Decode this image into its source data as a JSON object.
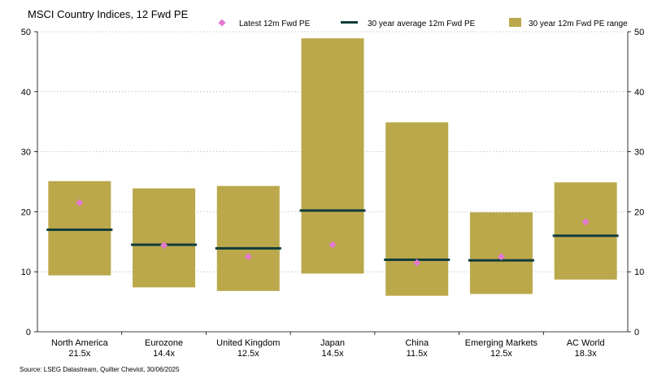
{
  "chart_data": {
    "type": "bar",
    "title": "MSCI Country Indices, 12 Fwd PE",
    "legend": {
      "latest": "Latest 12m Fwd PE",
      "average": "30 year average 12m Fwd PE",
      "range": "30 year 12m Fwd PE range"
    },
    "categories": [
      "North America",
      "Eurozone",
      "United Kingdom",
      "Japan",
      "China",
      "Emerging Markets",
      "AC World"
    ],
    "latest_labels": [
      "21.5x",
      "14.4x",
      "12.5x",
      "14.5x",
      "11.5x",
      "12.5x",
      "18.3x"
    ],
    "series": [
      {
        "name": "Latest 12m Fwd PE",
        "values": [
          21.5,
          14.4,
          12.5,
          14.5,
          11.5,
          12.5,
          18.3
        ]
      },
      {
        "name": "30 year average 12m Fwd PE",
        "values": [
          17.0,
          14.5,
          13.9,
          20.2,
          12.0,
          11.9,
          16.0
        ]
      },
      {
        "name": "30 year 12m Fwd PE range",
        "low": [
          9.4,
          7.4,
          6.8,
          9.7,
          6.0,
          6.3,
          8.7
        ],
        "high": [
          25.1,
          23.9,
          24.3,
          48.9,
          34.9,
          19.9,
          24.9
        ]
      }
    ],
    "yticks": [
      0,
      10,
      20,
      30,
      40,
      50
    ],
    "ylim": [
      0,
      50
    ],
    "xlabel": "",
    "ylabel": "",
    "grid": true,
    "colors": {
      "latest": "#e278cf",
      "average": "#0f3d3c",
      "range": "#bba84b"
    },
    "source": "Source: LSEG Datastream, Quilter Cheviot, 30/06/2025"
  }
}
